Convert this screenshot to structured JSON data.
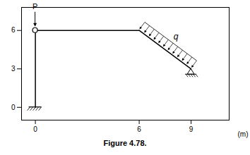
{
  "chart_data": {
    "type": "line",
    "caption": "Figure 4.78.",
    "xlabel": "(m)",
    "color": "#000000",
    "xlim": [
      -0.8,
      11.2
    ],
    "ylim": [
      -1.0,
      7.8
    ],
    "xticks": [
      0,
      6,
      9
    ],
    "yticks": [
      0,
      3,
      6
    ],
    "series": [
      {
        "x": [
          0,
          0
        ],
        "y": [
          0,
          6
        ]
      },
      {
        "x": [
          0,
          6
        ],
        "y": [
          6,
          6
        ]
      },
      {
        "x": [
          6,
          9
        ],
        "y": [
          6,
          3
        ]
      }
    ],
    "supports": [
      {
        "kind": "fixed",
        "point": [
          0,
          0
        ]
      },
      {
        "kind": "roller",
        "point": [
          9,
          3
        ]
      }
    ],
    "hinge": [
      0,
      6
    ],
    "annotations": [
      {
        "text": "P",
        "point": [
          0,
          6
        ]
      },
      {
        "text": "q",
        "from": [
          6,
          6
        ],
        "to": [
          9,
          3
        ],
        "arrows": 12
      }
    ]
  }
}
